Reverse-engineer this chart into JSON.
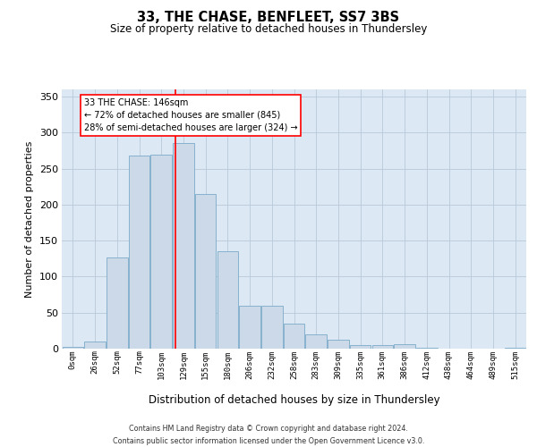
{
  "title": "33, THE CHASE, BENFLEET, SS7 3BS",
  "subtitle": "Size of property relative to detached houses in Thundersley",
  "xlabel": "Distribution of detached houses by size in Thundersley",
  "ylabel": "Number of detached properties",
  "categories": [
    "0sqm",
    "26sqm",
    "52sqm",
    "77sqm",
    "103sqm",
    "129sqm",
    "155sqm",
    "180sqm",
    "206sqm",
    "232sqm",
    "258sqm",
    "283sqm",
    "309sqm",
    "335sqm",
    "361sqm",
    "386sqm",
    "412sqm",
    "438sqm",
    "464sqm",
    "489sqm",
    "515sqm"
  ],
  "bar_values": [
    2,
    10,
    127,
    268,
    270,
    285,
    215,
    135,
    60,
    60,
    35,
    20,
    12,
    5,
    5,
    6,
    1,
    0,
    0,
    0,
    1
  ],
  "bar_color": "#ccd9e8",
  "bar_edge_color": "#7aaac8",
  "grid_color": "#b8c8d8",
  "background_color": "#dce8f4",
  "annotation_text_line1": "33 THE CHASE: 146sqm",
  "annotation_text_line2": "← 72% of detached houses are smaller (845)",
  "annotation_text_line3": "28% of semi-detached houses are larger (324) →",
  "vline_color": "red",
  "vline_x_data": 4.63,
  "ylim_max": 360,
  "yticks": [
    0,
    50,
    100,
    150,
    200,
    250,
    300,
    350
  ],
  "footer_line1": "Contains HM Land Registry data © Crown copyright and database right 2024.",
  "footer_line2": "Contains public sector information licensed under the Open Government Licence v3.0."
}
